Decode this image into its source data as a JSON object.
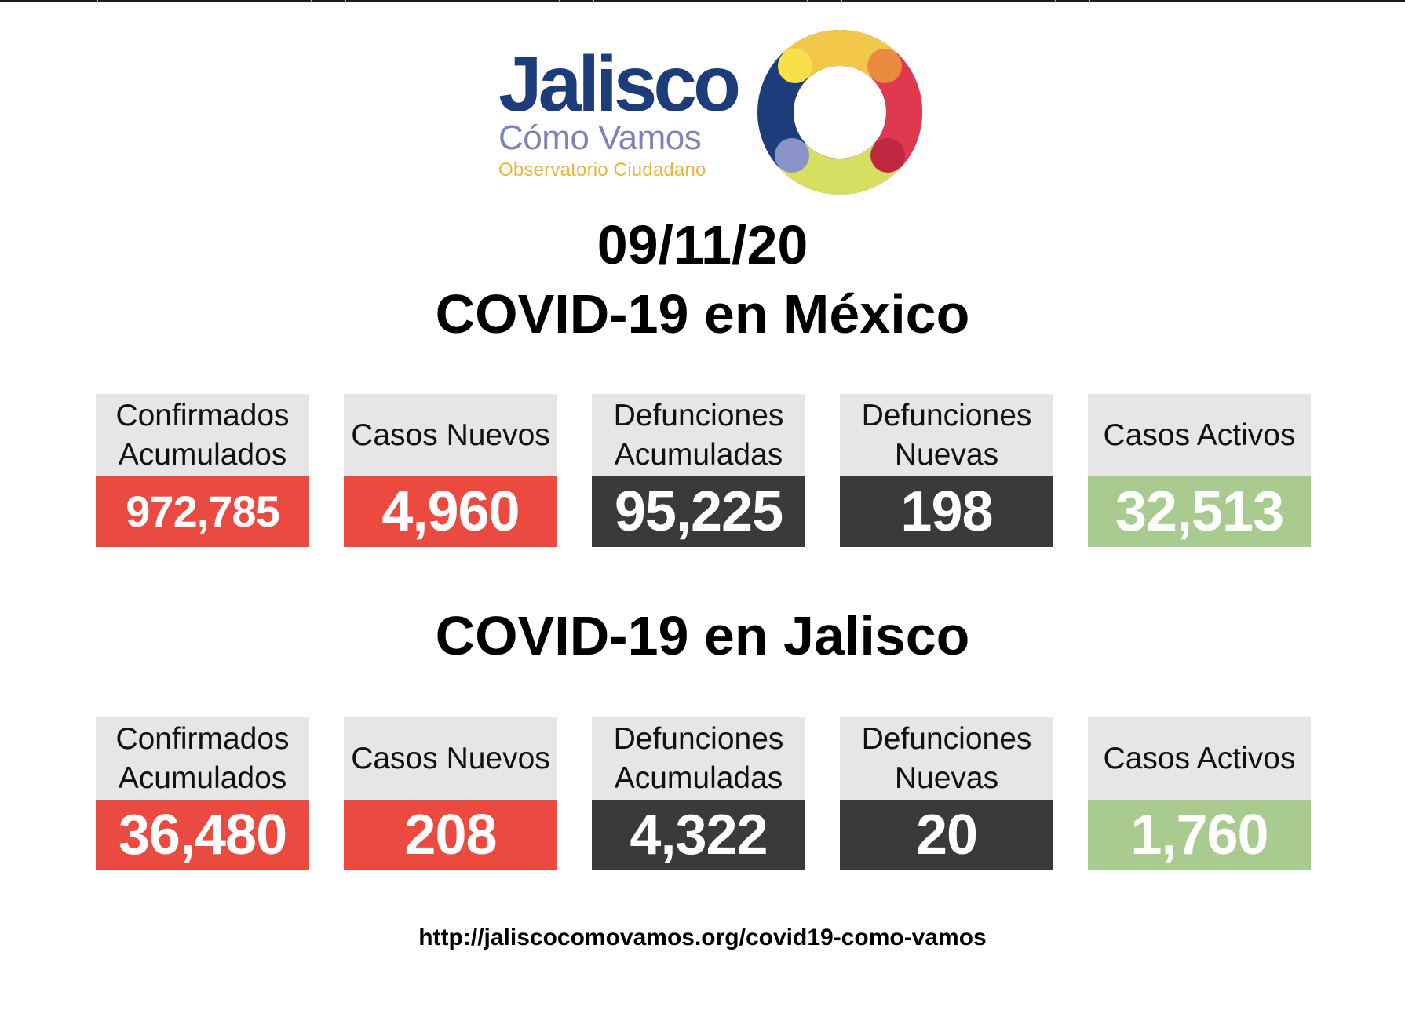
{
  "logo": {
    "name": "Jalisco",
    "subtitle": "Cómo Vamos",
    "tagline": "Observatorio Ciudadano",
    "colors": {
      "navy": "#1c3d7a",
      "periwinkle": "#7a84b8",
      "gold": "#e9b53a",
      "ring_yellow": "#f2c84b",
      "ring_orange": "#e88b3e",
      "ring_red": "#e0394f",
      "ring_crimson": "#c0283f",
      "ring_lime": "#d7df62",
      "ring_blue": "#1c3d7a",
      "ring_lavender": "#8a93c8"
    }
  },
  "date": "09/11/20",
  "mexico": {
    "title": "COVID-19 en México",
    "stats": [
      {
        "label": "Confirmados\nAcumulados",
        "value": "972,785",
        "color": "#ea4a3f"
      },
      {
        "label": "Casos Nuevos",
        "value": "4,960",
        "color": "#ea4a3f"
      },
      {
        "label": "Defunciones\nAcumuladas",
        "value": "95,225",
        "color": "#3a3a3a"
      },
      {
        "label": "Defunciones\nNuevas",
        "value": "198",
        "color": "#3a3a3a"
      },
      {
        "label": "Casos Activos",
        "value": "32,513",
        "color": "#a9cb8f"
      }
    ]
  },
  "jalisco": {
    "title": "COVID-19 en Jalisco",
    "stats": [
      {
        "label": "Confirmados\nAcumulados",
        "value": "36,480",
        "color": "#ea4a3f"
      },
      {
        "label": "Casos Nuevos",
        "value": "208",
        "color": "#ea4a3f"
      },
      {
        "label": "Defunciones\nAcumuladas",
        "value": "4,322",
        "color": "#3a3a3a"
      },
      {
        "label": "Defunciones\nNuevas",
        "value": "20",
        "color": "#3a3a3a"
      },
      {
        "label": "Casos Activos",
        "value": "1,760",
        "color": "#a9cb8f"
      }
    ]
  },
  "footer": {
    "url": "http://jaliscocomovamos.org/covid19-como-vamos"
  }
}
